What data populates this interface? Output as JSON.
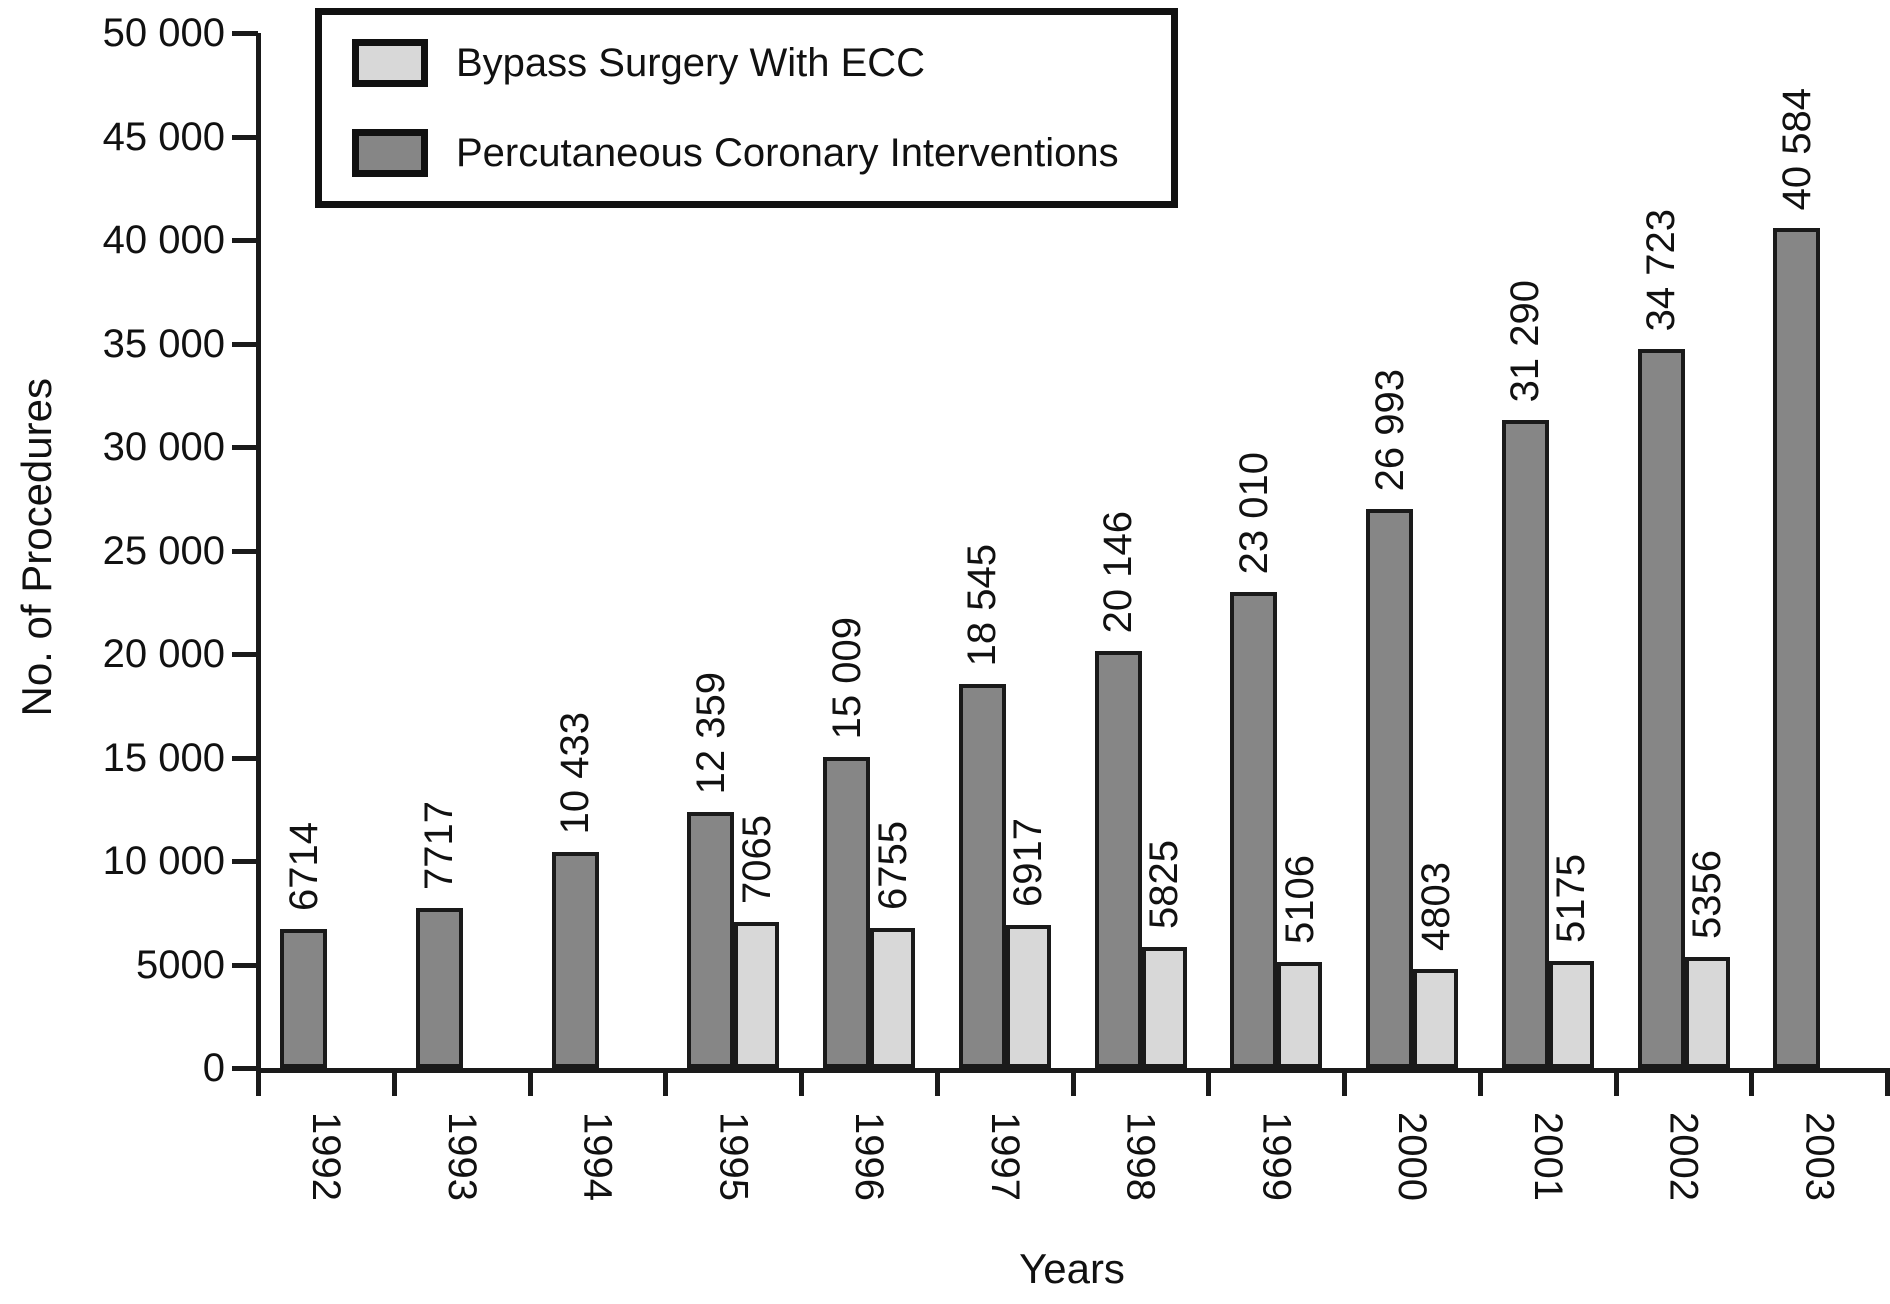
{
  "figure": {
    "x_axis_title": "Years",
    "y_axis_title": "No. of Procedures"
  },
  "legend": {
    "position": "top-left",
    "items": [
      {
        "label": "Bypass Surgery With ECC",
        "swatch": "light-gray"
      },
      {
        "label": "Percutaneous Coronary Interventions",
        "swatch": "dark-gray"
      }
    ]
  },
  "colors": {
    "bypass_fill": "#d8d8d8",
    "pci_fill": "#868686",
    "stroke": "#1a1a1a",
    "text": "#111111",
    "background": "#ffffff"
  },
  "chart_data": {
    "type": "bar",
    "title": "",
    "xlabel": "Years",
    "ylabel": "No. of Procedures",
    "categories": [
      "1992",
      "1993",
      "1994",
      "1995",
      "1996",
      "1997",
      "1998",
      "1999",
      "2000",
      "2001",
      "2002",
      "2003"
    ],
    "series": [
      {
        "name": "Bypass Surgery With ECC",
        "color": "#d8d8d8",
        "values": [
          null,
          null,
          null,
          7065,
          6755,
          6917,
          5825,
          5106,
          4803,
          5175,
          5356,
          null
        ],
        "labels": [
          null,
          null,
          null,
          "7065",
          "6755",
          "6917",
          "5825",
          "5106",
          "4803",
          "5175",
          "5356",
          null
        ]
      },
      {
        "name": "Percutaneous Coronary Interventions",
        "color": "#868686",
        "values": [
          6714,
          7717,
          10433,
          12359,
          15009,
          18545,
          20146,
          23010,
          26993,
          31290,
          34723,
          40584
        ],
        "labels": [
          "6714",
          "7717",
          "10 433",
          "12 359",
          "15 009",
          "18 545",
          "20 146",
          "23 010",
          "26 993",
          "31 290",
          "34 723",
          "40 584"
        ]
      }
    ],
    "ylim": [
      0,
      50000
    ],
    "y_tick_step": 5000,
    "y_tick_labels": [
      "0",
      "5000",
      "10 000",
      "15 000",
      "20 000",
      "25 000",
      "30 000",
      "35 000",
      "40 000",
      "45 000",
      "50 000"
    ],
    "bar_value_labels_rotated": true,
    "x_tick_labels_rotated": true,
    "grid": false,
    "legend_position": "top-left"
  }
}
